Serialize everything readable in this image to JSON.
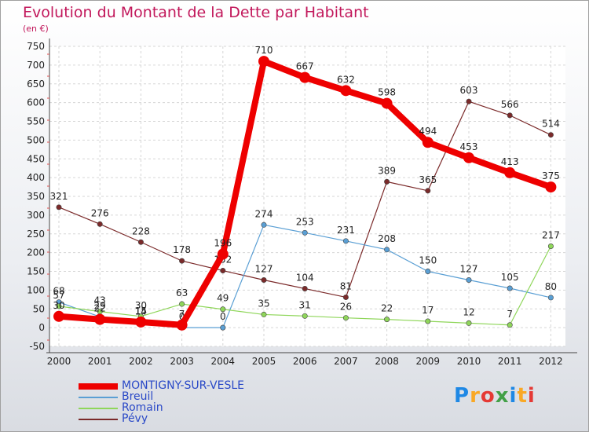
{
  "chart_data": {
    "type": "line",
    "title": "Evolution du Montant de la Dette par Habitant",
    "subtitle": "(en €)",
    "x": [
      "2000",
      "2001",
      "2002",
      "2003",
      "2004",
      "2005",
      "2006",
      "2007",
      "2008",
      "2009",
      "2010",
      "2011",
      "2012"
    ],
    "ylim": [
      -50,
      750
    ],
    "yticks": [
      -50,
      0,
      50,
      100,
      150,
      200,
      250,
      300,
      350,
      400,
      450,
      500,
      550,
      600,
      650,
      700,
      750
    ],
    "grid": true,
    "series": [
      {
        "name": "Pévy",
        "color": "#7b2a2a",
        "width": 1.2,
        "values": [
          321,
          276,
          228,
          178,
          152,
          127,
          104,
          81,
          389,
          365,
          603,
          566,
          514
        ]
      },
      {
        "name": "Breuil",
        "color": "#5a9fd4",
        "width": 1.2,
        "values": [
          68,
          29,
          14,
          0,
          0,
          274,
          253,
          231,
          208,
          150,
          127,
          105,
          80
        ]
      },
      {
        "name": "Romain",
        "color": "#8fd65a",
        "width": 1.2,
        "values": [
          57,
          43,
          30,
          63,
          49,
          35,
          31,
          26,
          22,
          17,
          12,
          7,
          217
        ]
      },
      {
        "name": "MONTIGNY-SUR-VESLE",
        "color": "#ee0000",
        "width": 8,
        "values": [
          30,
          22,
          15,
          7,
          196,
          710,
          667,
          632,
          598,
          494,
          453,
          413,
          375
        ]
      }
    ],
    "legend_order": [
      "MONTIGNY-SUR-VESLE",
      "Breuil",
      "Romain",
      "Pévy"
    ]
  },
  "logo": {
    "text": "Proxiti"
  }
}
